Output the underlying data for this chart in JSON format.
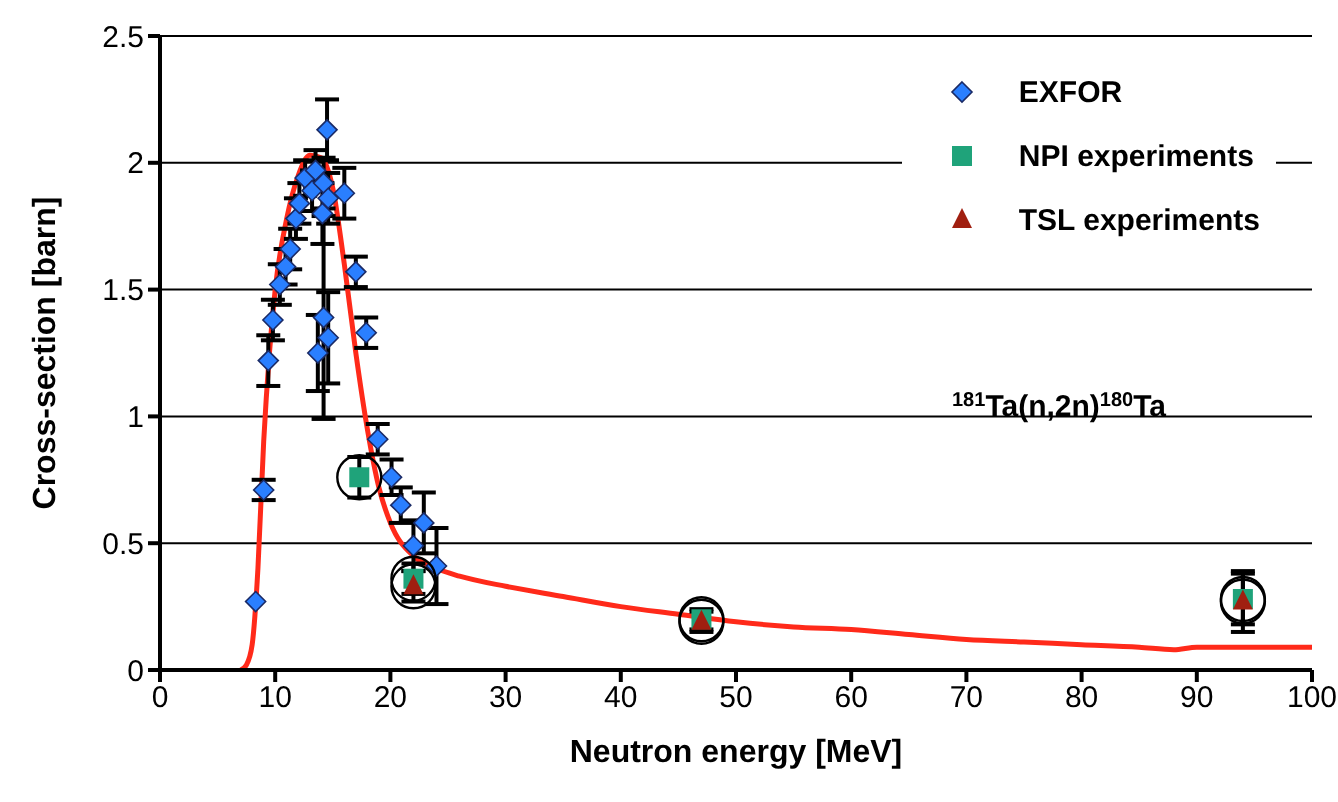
{
  "chart_data": {
    "type": "scatter",
    "xlabel": "Neutron energy [MeV]",
    "ylabel": "Cross-section [barn]",
    "annotations": [
      "$^{181}$Ta(n,2n)$^{180}$Ta"
    ],
    "xlim": [
      0,
      100
    ],
    "xticks": [
      0,
      10,
      20,
      30,
      40,
      50,
      60,
      70,
      80,
      90,
      100
    ],
    "ylim": [
      0,
      2.5
    ],
    "yticks": [
      0,
      0.5,
      1,
      1.5,
      2,
      2.5
    ],
    "grid": "y",
    "legend": "top right",
    "series": [
      {
        "type": "line",
        "color": "#ff2a1a",
        "marker": "none",
        "line_style": "solid",
        "x": [
          7,
          7.5,
          8,
          8.5,
          9,
          9.5,
          10,
          11,
          12,
          13,
          14,
          15,
          16,
          17,
          18,
          19,
          20,
          22,
          24,
          26,
          30,
          35,
          40,
          45,
          50,
          55,
          60,
          65,
          70,
          75,
          80,
          85,
          88,
          90,
          95,
          100
        ],
        "values": [
          0,
          0.02,
          0.1,
          0.4,
          0.9,
          1.25,
          1.5,
          1.78,
          1.95,
          2.03,
          2.02,
          1.9,
          1.6,
          1.25,
          0.95,
          0.72,
          0.58,
          0.45,
          0.4,
          0.37,
          0.33,
          0.29,
          0.25,
          0.22,
          0.19,
          0.17,
          0.16,
          0.14,
          0.12,
          0.11,
          0.1,
          0.09,
          0.08,
          0.09,
          0.09,
          0.09
        ]
      },
      {
        "name": "EXFOR",
        "color": "#2a7fff",
        "marker": "diamond",
        "x": [
          8.3,
          9,
          9.4,
          9.8,
          10.4,
          10.9,
          11.3,
          11.8,
          12.1,
          12.6,
          13.2,
          13.5,
          14.1,
          14.2,
          14.6,
          14.5,
          16,
          14.2,
          13.7,
          14.6,
          17,
          17.9,
          18.9,
          20.1,
          20.9,
          22.9,
          22,
          24
        ],
        "values": [
          0.27,
          0.71,
          1.22,
          1.38,
          1.52,
          1.59,
          1.66,
          1.78,
          1.84,
          1.94,
          1.89,
          1.97,
          1.8,
          1.92,
          1.86,
          2.13,
          1.88,
          1.39,
          1.25,
          1.31,
          1.57,
          1.33,
          0.91,
          0.76,
          0.65,
          0.58,
          0.49,
          0.41
        ],
        "errors": [
          null,
          0.04,
          0.1,
          0.08,
          0.08,
          0.07,
          0.08,
          0.08,
          0.08,
          0.07,
          0.08,
          0.08,
          0.12,
          0.1,
          0.1,
          0.12,
          0.1,
          0.4,
          0.15,
          0.18,
          0.06,
          0.06,
          0.06,
          0.07,
          0.07,
          0.12,
          0.1,
          0.15
        ]
      },
      {
        "name": "NPI experiments",
        "color": "#1fa37a",
        "marker": "square",
        "x": [
          17.3,
          22,
          47,
          94
        ],
        "values": [
          0.76,
          0.36,
          0.2,
          0.28
        ],
        "errors": [
          0.08,
          0.06,
          0.04,
          0.1
        ]
      },
      {
        "name": "TSL experiments",
        "color": "#a01f10",
        "marker": "triangle",
        "x": [
          22,
          47,
          94
        ],
        "values": [
          0.33,
          0.19,
          0.27
        ],
        "errors": [
          0.06,
          0.04,
          0.12
        ]
      }
    ]
  }
}
